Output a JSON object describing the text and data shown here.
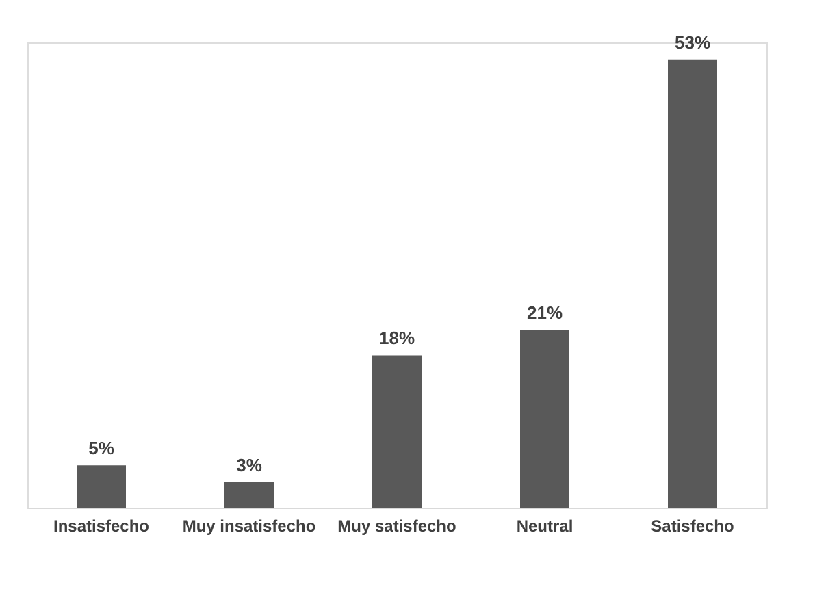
{
  "chart_data": {
    "type": "bar",
    "categories": [
      "Insatisfecho",
      "Muy insatisfecho",
      "Muy satisfecho",
      "Neutral",
      "Satisfecho"
    ],
    "values": [
      5,
      3,
      18,
      21,
      53
    ],
    "value_labels": [
      "5%",
      "3%",
      "18%",
      "21%",
      "53%"
    ],
    "color": "#595959"
  }
}
